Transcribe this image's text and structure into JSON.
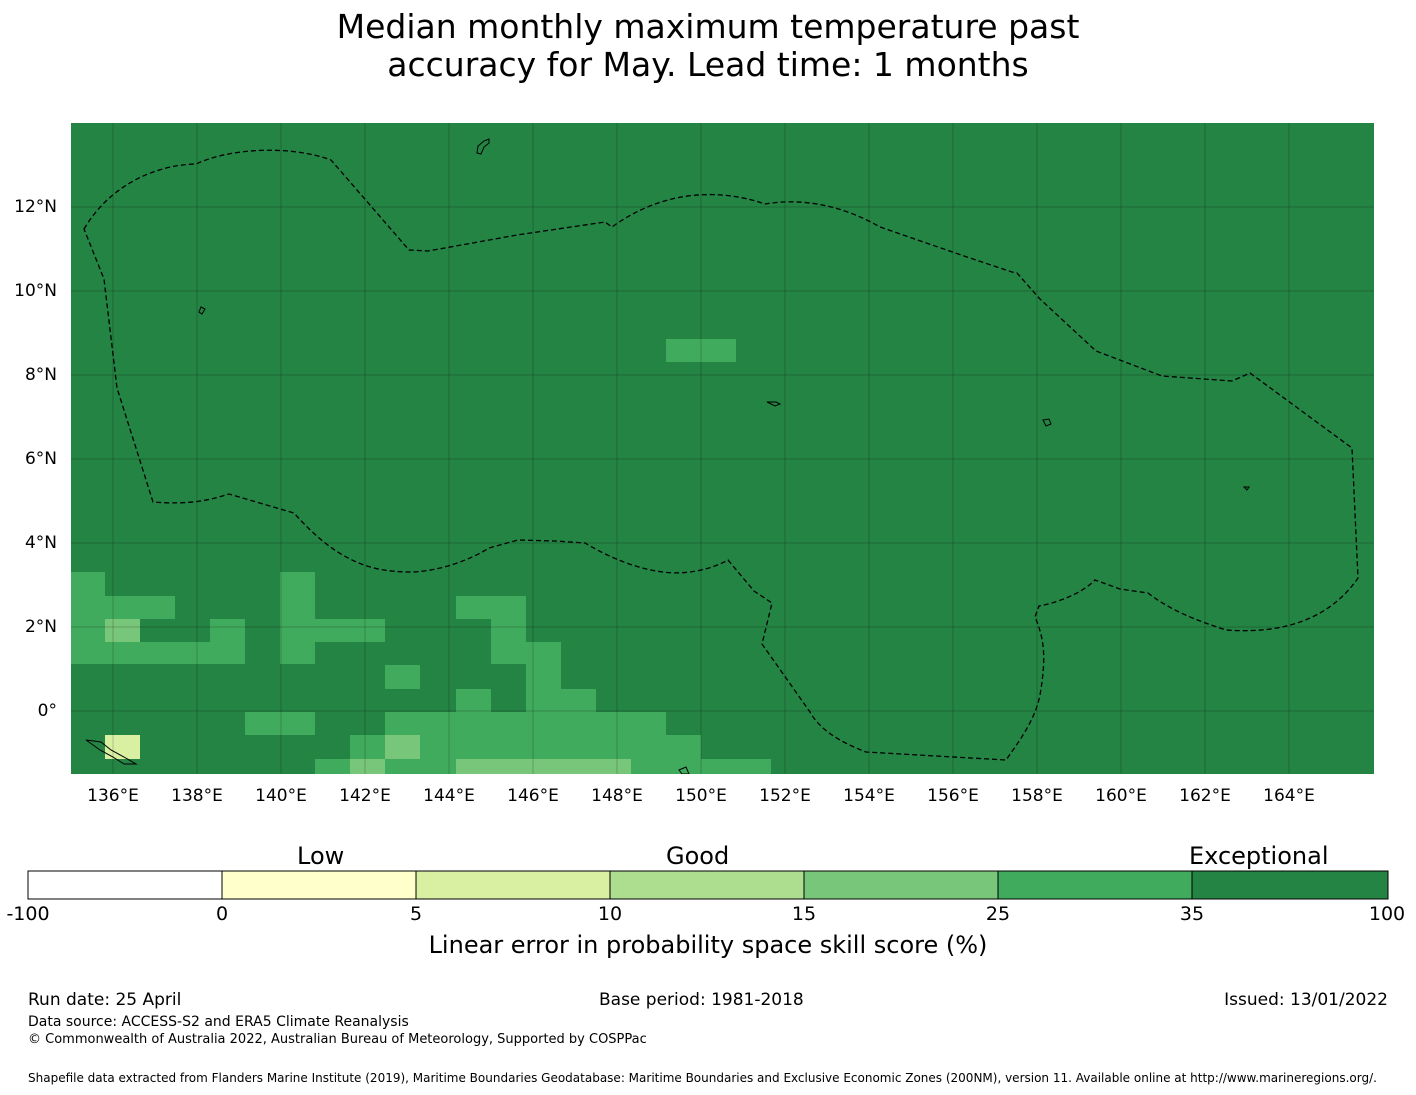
{
  "title": {
    "line1": "Median monthly maximum temperature past",
    "line2": "accuracy for May. Lead time: 1 months"
  },
  "map": {
    "lat_labels": [
      "12°N",
      "10°N",
      "8°N",
      "6°N",
      "4°N",
      "2°N",
      "0°"
    ],
    "lon_labels": [
      "136°E",
      "138°E",
      "140°E",
      "142°E",
      "144°E",
      "146°E",
      "148°E",
      "150°E",
      "152°E",
      "154°E",
      "156°E",
      "158°E",
      "160°E",
      "162°E",
      "164°E"
    ],
    "background_color": "#238443"
  },
  "legend": {
    "category_labels": [
      "Low",
      "Good",
      "Exceptional"
    ],
    "tick_labels": [
      "-100",
      "0",
      "5",
      "10",
      "15",
      "25",
      "35",
      "100"
    ],
    "colors": [
      "#ffffff",
      "#ffffcc",
      "#d9f0a3",
      "#addd8e",
      "#78c679",
      "#41ab5d",
      "#238443"
    ],
    "title": "Linear error in probability space skill score (%)"
  },
  "footer": {
    "run_date": "Run date: 25 April",
    "base_period": "Base period: 1981-2018",
    "issued": "Issued: 13/01/2022",
    "data_source": "Data source: ACCESS-S2 and ERA5 Climate Reanalysis",
    "copyright": "© Commonwealth of Australia 2022, Australian Bureau of Meteorology, Supported by COSPPac",
    "shapefile": "Shapefile data extracted from Flanders Marine Institute (2019), Maritime Boundaries Geodatabase: Maritime Boundaries and Exclusive Economic Zones (200NM), version 11. Available online at http://www.marineregions.org/."
  }
}
